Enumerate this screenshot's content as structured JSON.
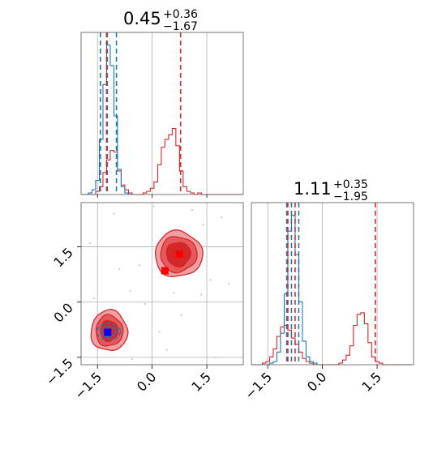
{
  "chart_data": {
    "type": "corner",
    "axes": {
      "ticks": [
        -1.5,
        0.0,
        1.5
      ],
      "tick_labels": [
        "−1.5",
        "0.0",
        "1.5"
      ],
      "x_range": [
        -1.95,
        2.5
      ],
      "y_range": [
        -1.7,
        2.7
      ],
      "grid": true
    },
    "titles": [
      {
        "value": "0.45",
        "plus": "+0.36",
        "minus": "−1.67"
      },
      {
        "value": "1.11",
        "plus": "+0.35",
        "minus": "−1.95"
      }
    ],
    "colors": {
      "red": "#d62728",
      "blue": "#1f77b4",
      "red_fill_light": "#f0a0a2",
      "red_fill_mid": "#e35a5c",
      "red_fill_dark": "#d62728"
    },
    "series": [
      {
        "color": "red",
        "quantile_lines_x": [
          -1.25,
          0.78
        ],
        "quantile_lines_y": [
          -0.95,
          -0.75,
          1.45
        ],
        "hist_x": {
          "bins": [
            -1.95,
            -1.85,
            -1.75,
            -1.65,
            -1.55,
            -1.45,
            -1.35,
            -1.25,
            -1.15,
            -1.05,
            -0.95,
            -0.85,
            -0.75,
            -0.65,
            -0.55,
            -0.45,
            -0.35,
            -0.25,
            -0.15,
            -0.05,
            0.05,
            0.15,
            0.25,
            0.35,
            0.45,
            0.55,
            0.65,
            0.75,
            0.85,
            0.95,
            1.05,
            1.15,
            1.25,
            1.35,
            1.45,
            1.55,
            1.65,
            1.75,
            1.85,
            1.95,
            2.05,
            2.15,
            2.25,
            2.35,
            2.45
          ],
          "counts": [
            0,
            0,
            0,
            0,
            0.02,
            0.05,
            0.14,
            0.22,
            0.28,
            0.27,
            0.15,
            0.06,
            0.03,
            0.01,
            0,
            0,
            0,
            0.01,
            0.02,
            0.04,
            0.08,
            0.19,
            0.3,
            0.35,
            0.38,
            0.42,
            0.31,
            0.15,
            0.05,
            0.02,
            0.01,
            0,
            0.01,
            0,
            0,
            0,
            0,
            0,
            0,
            0,
            0,
            0,
            0,
            0
          ]
        },
        "hist_y": {
          "bins": [
            -1.95,
            -1.85,
            -1.75,
            -1.65,
            -1.55,
            -1.45,
            -1.35,
            -1.25,
            -1.15,
            -1.05,
            -0.95,
            -0.85,
            -0.75,
            -0.65,
            -0.55,
            -0.45,
            -0.35,
            -0.25,
            -0.15,
            -0.05,
            0.05,
            0.15,
            0.25,
            0.35,
            0.45,
            0.55,
            0.65,
            0.75,
            0.85,
            0.95,
            1.05,
            1.15,
            1.25,
            1.35,
            1.45,
            1.55,
            1.65,
            1.75,
            1.85,
            1.95,
            2.05,
            2.15,
            2.25,
            2.35,
            2.45
          ],
          "counts": [
            0,
            0,
            0,
            0.01,
            0.02,
            0.05,
            0.1,
            0.18,
            0.24,
            0.25,
            0.22,
            0.17,
            0.13,
            0.08,
            0.04,
            0.02,
            0.01,
            0,
            0,
            0,
            0,
            0,
            0,
            0,
            0.01,
            0.03,
            0.06,
            0.12,
            0.25,
            0.32,
            0.33,
            0.26,
            0.14,
            0.05,
            0.02,
            0.01,
            0,
            0,
            0,
            0,
            0,
            0,
            0,
            0
          ]
        },
        "contours_2d": [
          {
            "center": [
              -1.18,
              -0.78
            ],
            "radii": [
              [
                0.5,
                0.55
              ],
              [
                0.37,
                0.42
              ],
              [
                0.24,
                0.28
              ]
            ]
          },
          {
            "center": [
              0.72,
              1.3
            ],
            "radii": [
              [
                0.65,
                0.62
              ],
              [
                0.5,
                0.48
              ],
              [
                0.33,
                0.33
              ]
            ]
          }
        ],
        "markers": [
          {
            "x": 0.35,
            "y": 0.85
          },
          {
            "x": 0.75,
            "y": 1.3
          }
        ]
      },
      {
        "color": "blue",
        "quantile_lines_x": [
          -1.42,
          -1.23,
          -0.98
        ],
        "quantile_lines_y": [
          -0.98,
          -0.85,
          -0.65
        ],
        "hist_x": {
          "bins": [
            -1.95,
            -1.85,
            -1.75,
            -1.65,
            -1.55,
            -1.45,
            -1.35,
            -1.25,
            -1.15,
            -1.05,
            -0.95,
            -0.85,
            -0.75,
            -0.65,
            -0.55,
            -0.45
          ],
          "counts": [
            0,
            0,
            0.01,
            0.03,
            0.09,
            0.35,
            0.7,
            0.95,
            0.82,
            0.5,
            0.16,
            0.05,
            0.01,
            0,
            0
          ]
        },
        "hist_y": {
          "bins": [
            -1.95,
            -1.85,
            -1.75,
            -1.65,
            -1.55,
            -1.45,
            -1.35,
            -1.25,
            -1.15,
            -1.05,
            -0.95,
            -0.85,
            -0.75,
            -0.65,
            -0.55,
            -0.45,
            -0.35,
            -0.25,
            -0.15,
            -0.05
          ],
          "counts": [
            0,
            0,
            0,
            0,
            0,
            0.01,
            0.02,
            0.08,
            0.2,
            0.45,
            0.85,
            0.95,
            0.7,
            0.4,
            0.15,
            0.05,
            0.02,
            0.01,
            0
          ]
        },
        "contours_2d": [
          {
            "center": [
              -1.2,
              -0.8
            ],
            "radii": [
              [
                0.32,
                0.22
              ],
              [
                0.2,
                0.14
              ]
            ]
          }
        ],
        "markers": [
          {
            "x": -1.22,
            "y": -0.82
          }
        ]
      }
    ],
    "scatter_points": [
      [
        -1.05,
        2.4
      ],
      [
        -0.9,
        0.9
      ],
      [
        -0.6,
        0.3
      ],
      [
        0.05,
        2.6
      ],
      [
        1.4,
        2.1
      ],
      [
        1.9,
        2.3
      ],
      [
        -0.2,
        -0.05
      ],
      [
        1.35,
        0.2
      ],
      [
        0.8,
        -0.35
      ],
      [
        -1.6,
        0.1
      ],
      [
        0.4,
        -1.3
      ],
      [
        1.6,
        0.6
      ],
      [
        2.1,
        0.5
      ],
      [
        -0.35,
        1.0
      ],
      [
        0.2,
        -0.8
      ],
      [
        1.75,
        -1.5
      ],
      [
        -1.7,
        1.6
      ],
      [
        1.1,
        2.5
      ],
      [
        0.6,
        0.25
      ],
      [
        -0.55,
        -1.55
      ]
    ]
  }
}
